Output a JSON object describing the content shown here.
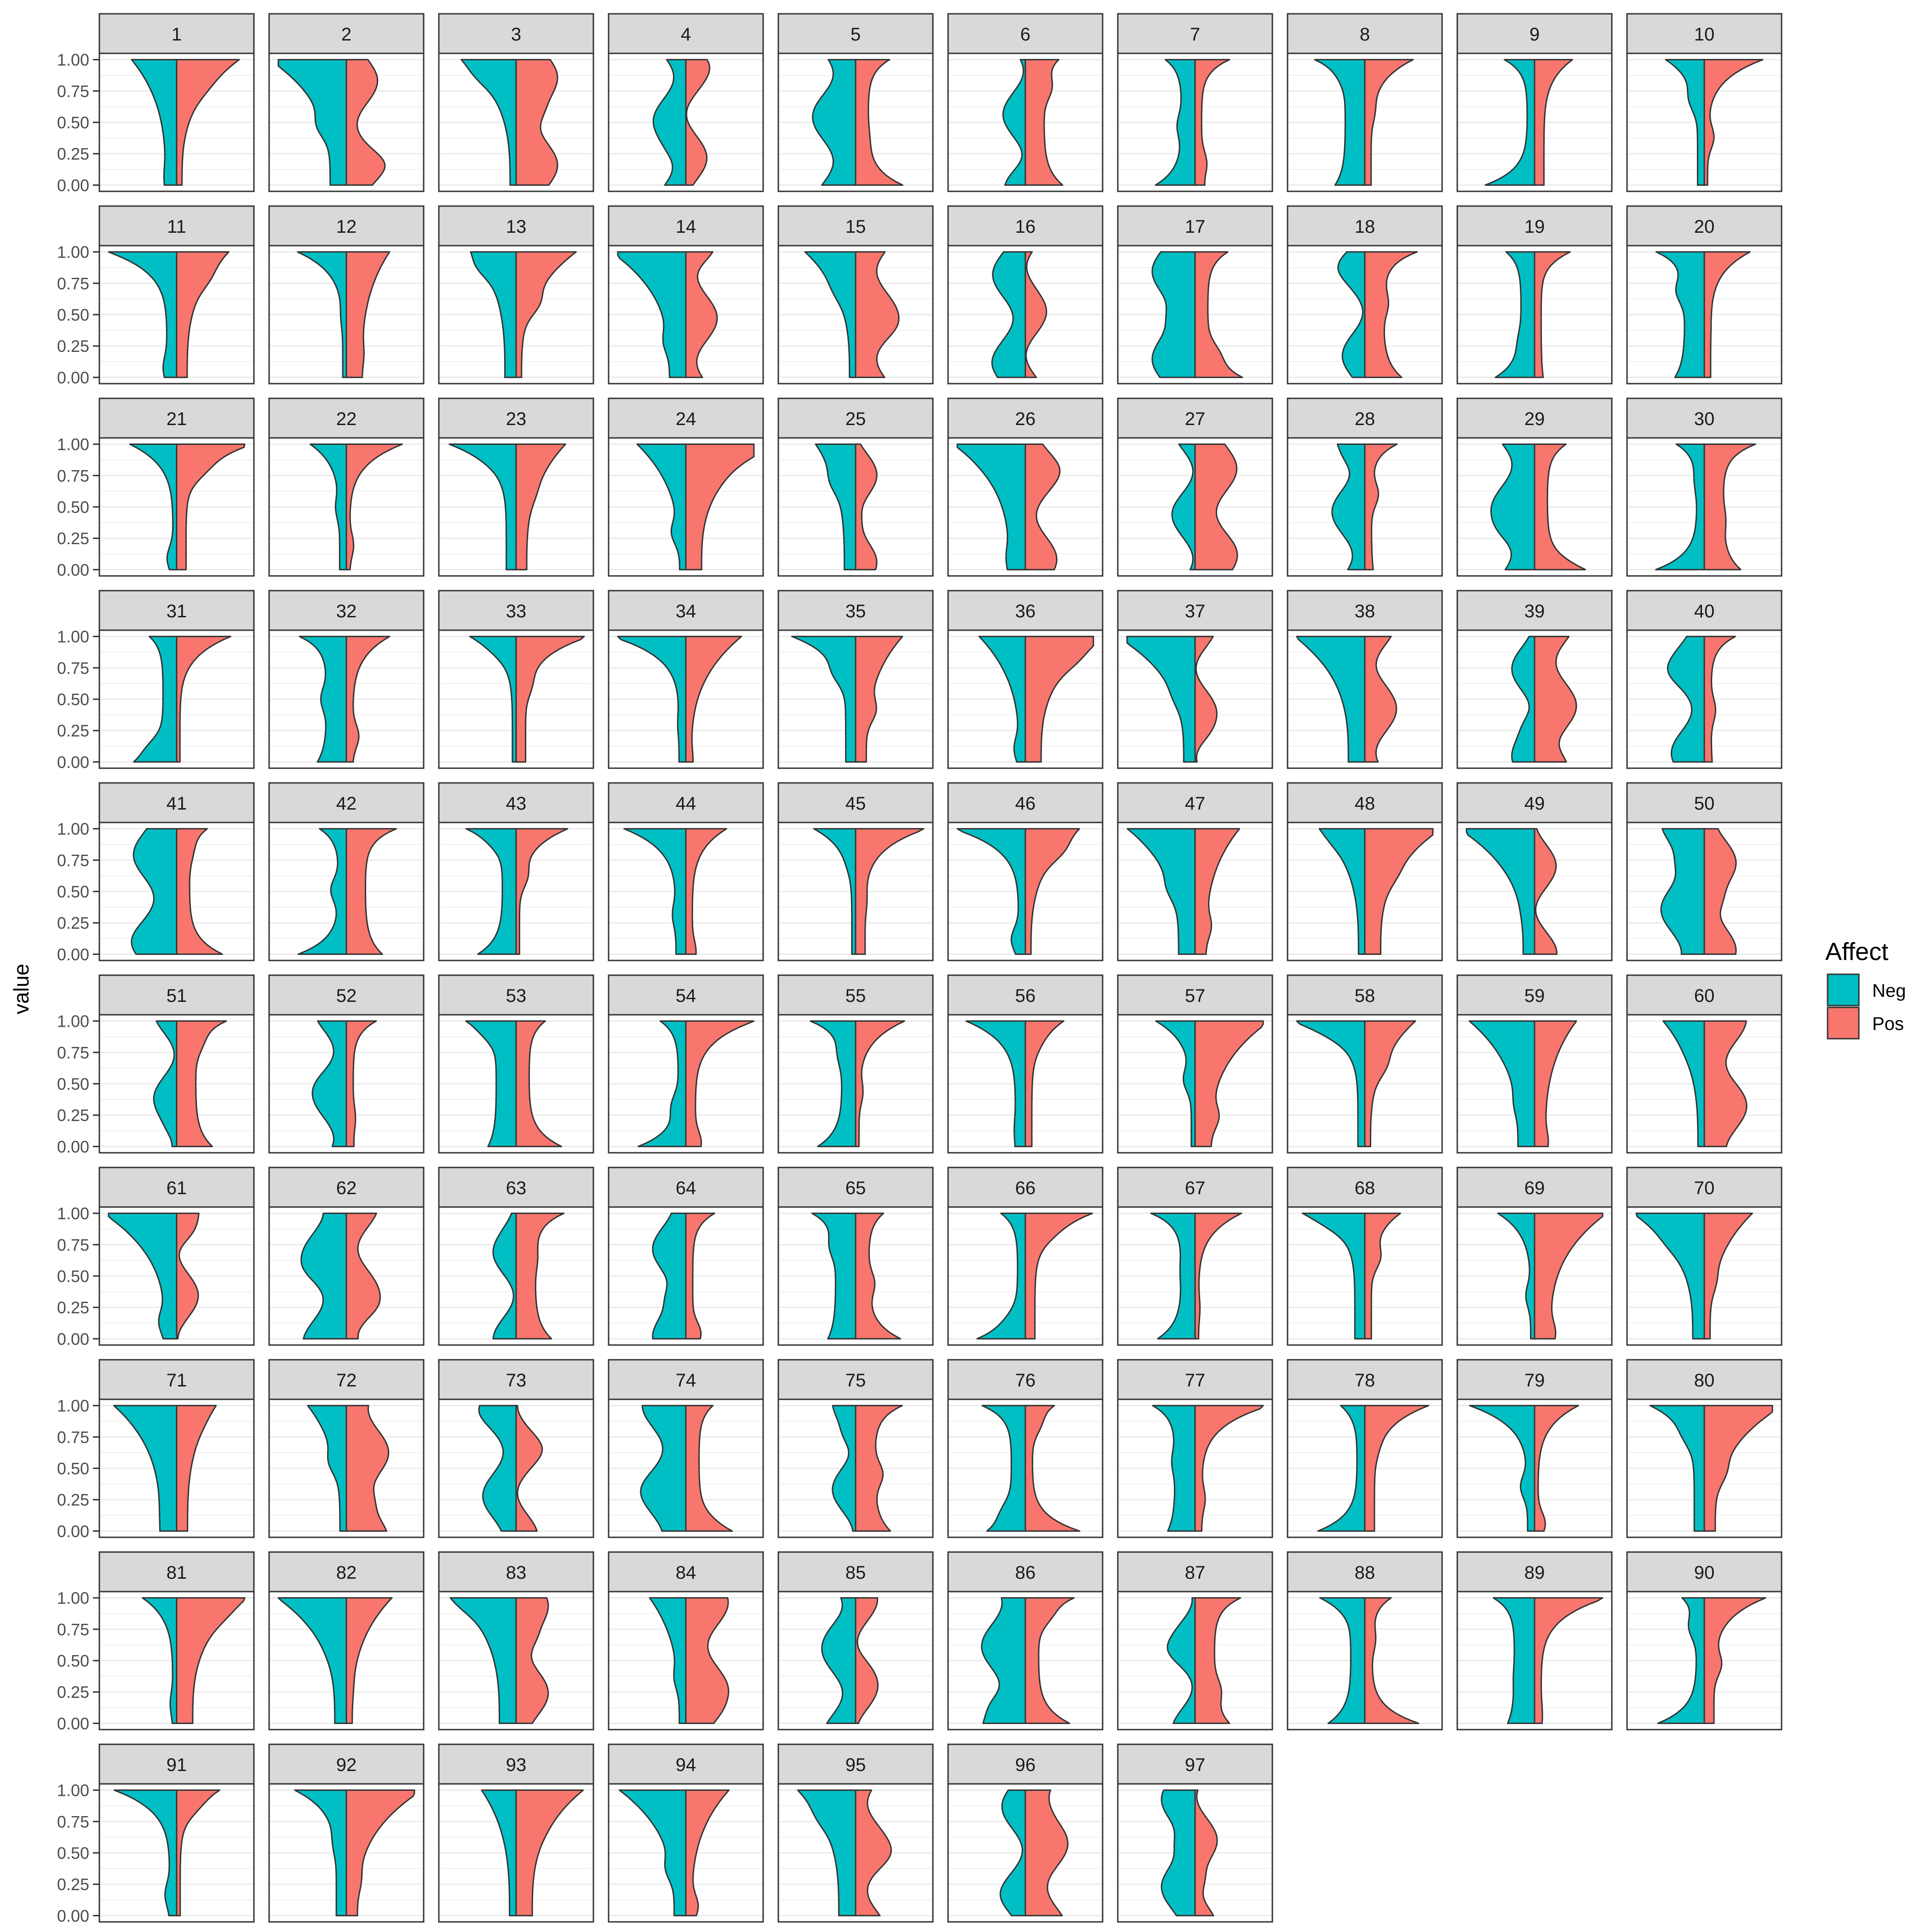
{
  "chart_data": {
    "type": "violin",
    "facet_by": "panel",
    "panels": [
      "1",
      "2",
      "3",
      "4",
      "5",
      "6",
      "7",
      "8",
      "9",
      "10",
      "11",
      "12",
      "13",
      "14",
      "15",
      "16",
      "17",
      "18",
      "19",
      "20",
      "21",
      "22",
      "23",
      "24",
      "25",
      "26",
      "27",
      "28",
      "29",
      "30",
      "31",
      "32",
      "33",
      "34",
      "35",
      "36",
      "37",
      "38",
      "39",
      "40",
      "41",
      "42",
      "43",
      "44",
      "45",
      "46",
      "47",
      "48",
      "49",
      "50",
      "51",
      "52",
      "53",
      "54",
      "55",
      "56",
      "57",
      "58",
      "59",
      "60",
      "61",
      "62",
      "63",
      "64",
      "65",
      "66",
      "67",
      "68",
      "69",
      "70",
      "71",
      "72",
      "73",
      "74",
      "75",
      "76",
      "77",
      "78",
      "79",
      "80",
      "81",
      "82",
      "83",
      "84",
      "85",
      "86",
      "87",
      "88",
      "89",
      "90",
      "91",
      "92",
      "93",
      "94",
      "95",
      "96",
      "97"
    ],
    "ylabel": "value",
    "xlabel": "",
    "ylim": [
      0,
      1
    ],
    "y_ticks": [
      "0.00",
      "0.25",
      "0.50",
      "0.75",
      "1.00"
    ],
    "grid": true,
    "legend": {
      "title": "Affect",
      "position": "right",
      "entries": [
        "Neg",
        "Pos"
      ]
    },
    "colors": {
      "Neg": "#00BFC4",
      "Pos": "#F8766D",
      "panel_strip": "#d9d9d9",
      "grid": "#ebebeb",
      "border": "#333333"
    },
    "series": [
      {
        "name": "Neg",
        "side": "left",
        "note": "half-violin density of value per panel, width relative to panel"
      },
      {
        "name": "Pos",
        "side": "right",
        "note": "half-violin density of value per panel, width relative to panel"
      }
    ]
  }
}
